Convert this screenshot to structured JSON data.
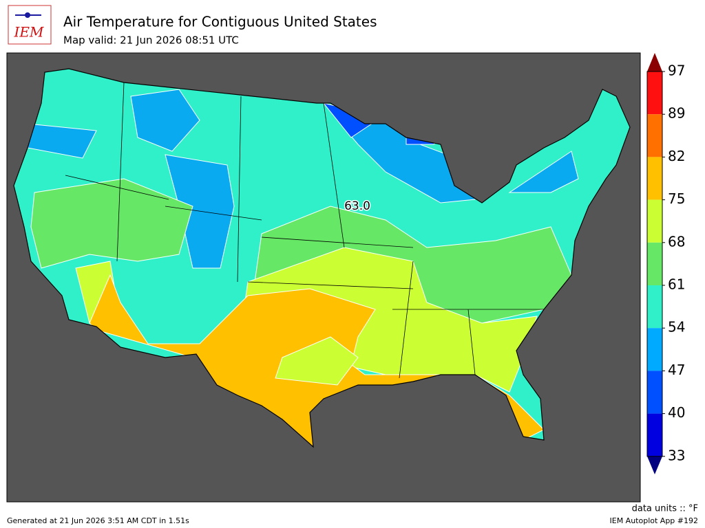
{
  "logo": {
    "text": "IEM"
  },
  "header": {
    "title": "Air Temperature for Contiguous United States",
    "subtitle": "Map valid: 21 Jun 2026 08:51 UTC"
  },
  "map": {
    "label": "63.0"
  },
  "colorbar": {
    "ticks": [
      "97",
      "89",
      "82",
      "75",
      "68",
      "61",
      "54",
      "47",
      "40",
      "33"
    ]
  },
  "footer": {
    "units": "data units :: °F",
    "generated": "Generated at 21 Jun 2026 3:51 AM CDT in 1.51s",
    "app": "IEM Autoplot App #192"
  }
}
